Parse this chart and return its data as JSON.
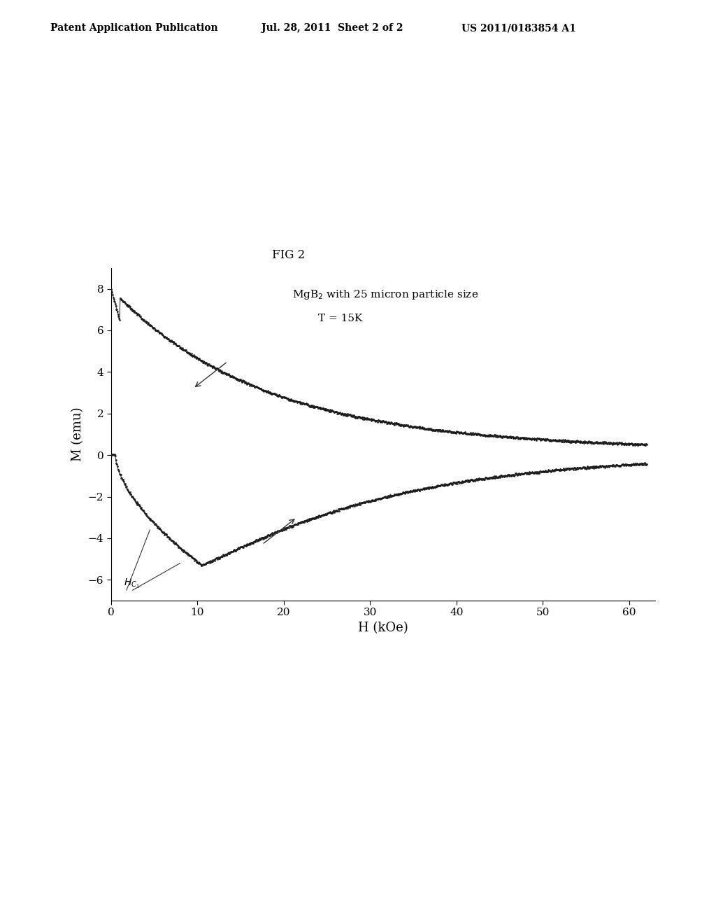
{
  "title": "FIG 2",
  "header_left": "Patent Application Publication",
  "header_center": "Jul. 28, 2011  Sheet 2 of 2",
  "header_right": "US 2011/0183854 A1",
  "xlabel": "H (kOe)",
  "ylabel": "M (emu)",
  "xlim": [
    0,
    63
  ],
  "ylim": [
    -7,
    9
  ],
  "yticks": [
    -6,
    -4,
    -2,
    0,
    2,
    4,
    6,
    8
  ],
  "xticks": [
    0,
    10,
    20,
    30,
    40,
    50,
    60
  ],
  "background_color": "#ffffff",
  "plot_color": "#1a1a1a",
  "figsize": [
    10.24,
    13.2
  ],
  "dpi": 100
}
